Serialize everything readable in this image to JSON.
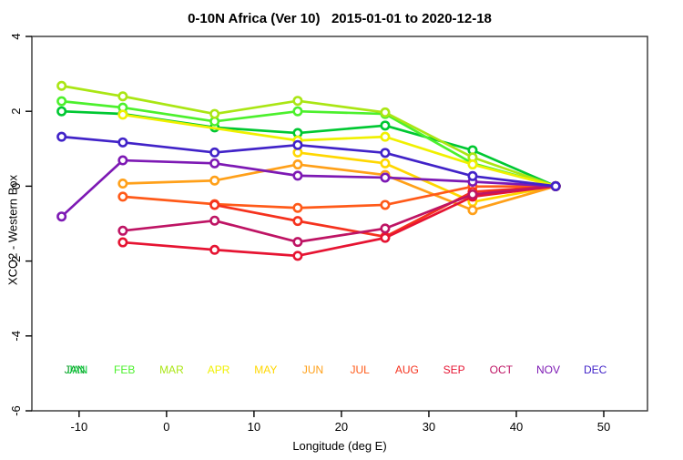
{
  "title": "0-10N Africa (Ver 10)   2015-01-01 to 2020-12-18",
  "chart_data": {
    "type": "line",
    "title": "0-10N Africa (Ver 10)   2015-01-01 to 2020-12-18",
    "xlabel": "Longitude (deg E)",
    "ylabel": "XCO2 - Western Box",
    "xlim": [
      -15.4,
      55
    ],
    "ylim": [
      -6,
      4
    ],
    "x_ticks": [
      -10,
      0,
      10,
      20,
      30,
      40,
      50
    ],
    "y_ticks": [
      -6,
      -4,
      -2,
      0,
      2,
      4
    ],
    "grid": false,
    "marker": "open-circle",
    "legend_position": "bottom-inline-months",
    "legend_y_value": -5,
    "x": [
      -12,
      -5,
      5.5,
      15,
      25,
      35,
      44.5
    ],
    "series": [
      {
        "name": "JAN",
        "color": "#00C832",
        "label_double_print": true,
        "shadow_color": "#00961E",
        "values": [
          2.0,
          1.93,
          1.57,
          1.42,
          1.62,
          0.96,
          0
        ]
      },
      {
        "name": "FEB",
        "color": "#4CF02D",
        "values": [
          2.27,
          2.1,
          1.73,
          2.0,
          1.93,
          0.61,
          0
        ]
      },
      {
        "name": "MAR",
        "color": "#AAE614",
        "values": [
          2.68,
          2.4,
          1.93,
          2.28,
          1.97,
          0.77,
          0
        ]
      },
      {
        "name": "APR",
        "color": "#F0F000",
        "values": [
          null,
          1.91,
          null,
          1.22,
          1.32,
          0.58,
          0
        ]
      },
      {
        "name": "MAY",
        "color": "#FFD700",
        "values": [
          null,
          null,
          null,
          0.9,
          0.61,
          -0.42,
          0
        ]
      },
      {
        "name": "JUN",
        "color": "#FFA019",
        "values": [
          null,
          0.07,
          0.15,
          0.58,
          0.3,
          -0.64,
          0
        ]
      },
      {
        "name": "JUL",
        "color": "#FF5A19",
        "values": [
          null,
          -0.28,
          -0.48,
          -0.58,
          -0.5,
          -0.01,
          0
        ]
      },
      {
        "name": "AUG",
        "color": "#F5321E",
        "values": [
          null,
          null,
          -0.5,
          -0.93,
          -1.35,
          -0.15,
          0
        ]
      },
      {
        "name": "SEP",
        "color": "#E61432",
        "values": [
          null,
          -1.5,
          -1.7,
          -1.86,
          -1.38,
          -0.28,
          0
        ]
      },
      {
        "name": "OCT",
        "color": "#BE1464",
        "values": [
          null,
          -1.19,
          -0.92,
          -1.49,
          -1.13,
          -0.22,
          0
        ]
      },
      {
        "name": "NOV",
        "color": "#7D19B4",
        "values": [
          -0.81,
          0.69,
          0.61,
          0.28,
          0.23,
          0.12,
          0
        ]
      },
      {
        "name": "DEC",
        "color": "#4123C8",
        "values": [
          1.32,
          1.17,
          0.9,
          1.1,
          0.89,
          0.27,
          0
        ]
      }
    ]
  }
}
